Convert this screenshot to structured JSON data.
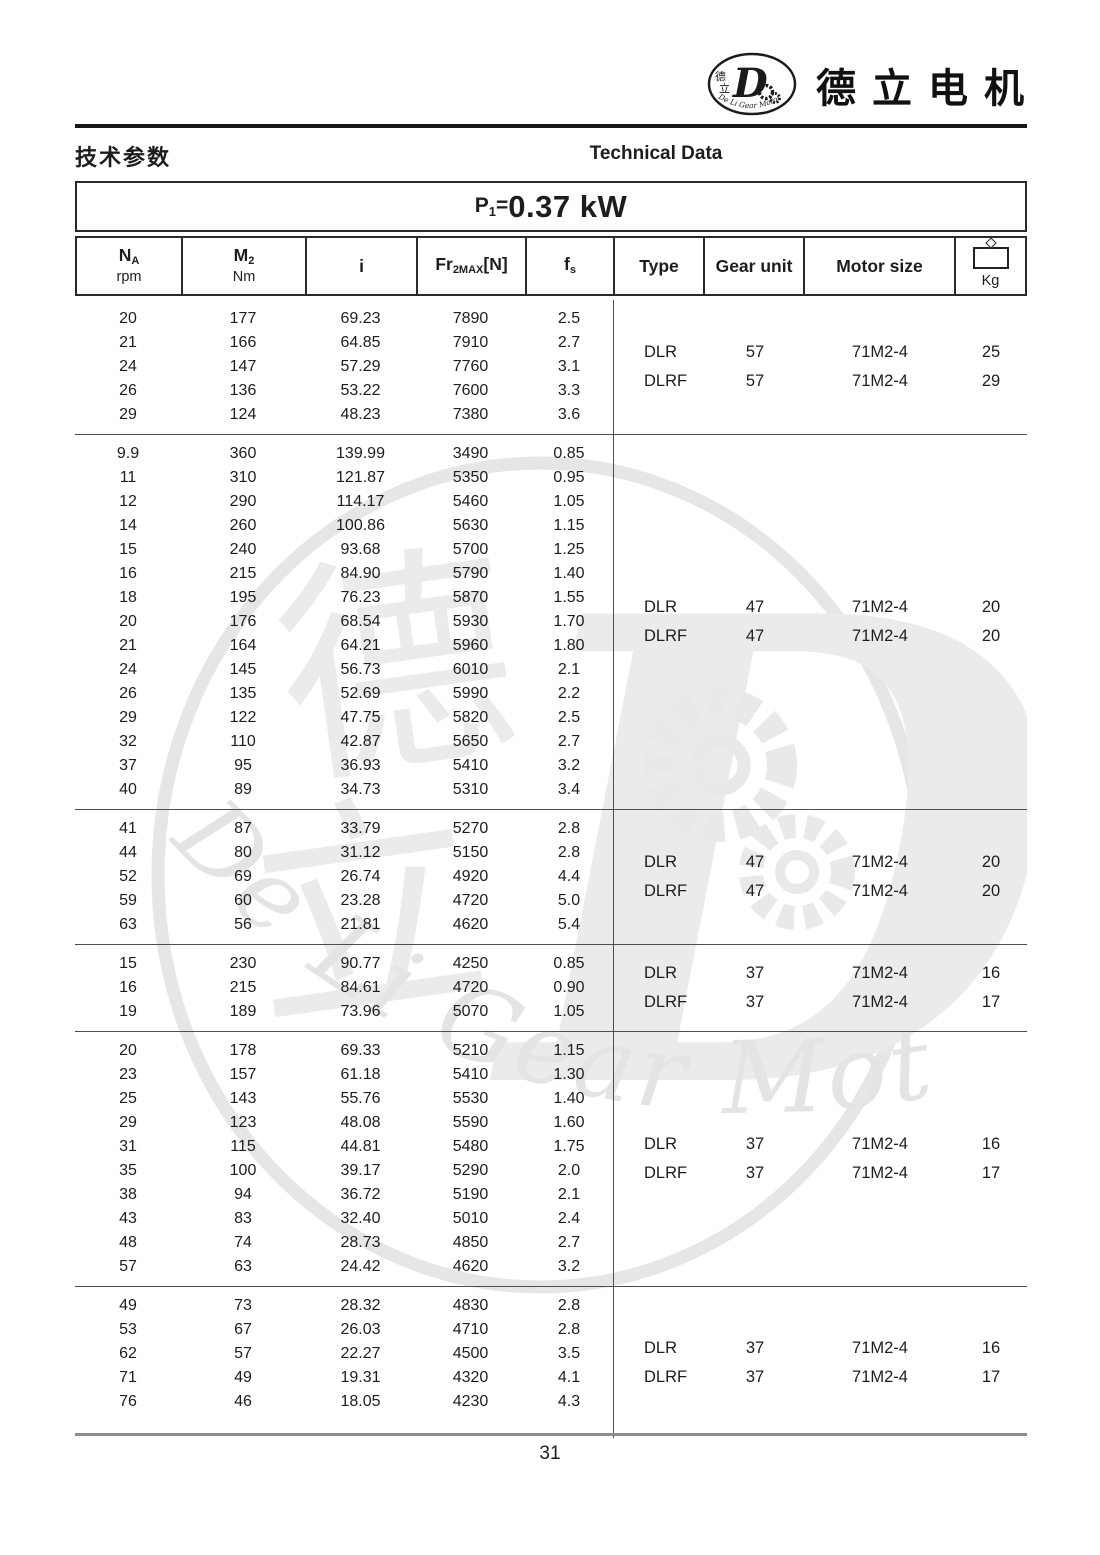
{
  "brand": {
    "logo": {
      "cn_top": "德",
      "cn_bottom": "立",
      "letter": "D",
      "arc_text": "De Li Gear Motor"
    },
    "name_cn": "德立电机"
  },
  "section": {
    "title_cn": "技术参数",
    "title_en": "Technical Data"
  },
  "power_title": {
    "prefix": "P",
    "sub": "1",
    "equals": "=",
    "value": "0.37 kW"
  },
  "table": {
    "col_keys": [
      "na-rpm",
      "m2-nm",
      "i",
      "fr2max-n",
      "fs"
    ],
    "headers": {
      "na": {
        "main": "N",
        "sub": "A",
        "unit": "rpm"
      },
      "m2": {
        "main": "M",
        "sub": "2",
        "unit": "Nm"
      },
      "i": {
        "main": "i"
      },
      "fr": {
        "pre": "Fr",
        "sub": "2MAX",
        "post": "[N]"
      },
      "fs": {
        "main": "f",
        "sub": "s"
      },
      "type": {
        "label": "Type"
      },
      "gear_unit": {
        "label": "Gear unit"
      },
      "motor_size": {
        "label": "Motor size"
      },
      "weight": {
        "label": "Kg",
        "icon": "weight-icon"
      }
    },
    "blocks": [
      {
        "rows": [
          [
            "20",
            "177",
            "69.23",
            "7890",
            "2.5"
          ],
          [
            "21",
            "166",
            "64.85",
            "7910",
            "2.7"
          ],
          [
            "24",
            "147",
            "57.29",
            "7760",
            "3.1"
          ],
          [
            "26",
            "136",
            "53.22",
            "7600",
            "3.3"
          ],
          [
            "29",
            "124",
            "48.23",
            "7380",
            "3.6"
          ]
        ],
        "type_rows": [
          {
            "type": "DLR",
            "gear": "57",
            "motor": "71M2-4",
            "kg": "25"
          },
          {
            "type": "DLRF",
            "gear": "57",
            "motor": "71M2-4",
            "kg": "29"
          }
        ]
      },
      {
        "rows": [
          [
            "9.9",
            "360",
            "139.99",
            "3490",
            "0.85"
          ],
          [
            "11",
            "310",
            "121.87",
            "5350",
            "0.95"
          ],
          [
            "12",
            "290",
            "114.17",
            "5460",
            "1.05"
          ],
          [
            "14",
            "260",
            "100.86",
            "5630",
            "1.15"
          ],
          [
            "15",
            "240",
            "93.68",
            "5700",
            "1.25"
          ],
          [
            "16",
            "215",
            "84.90",
            "5790",
            "1.40"
          ],
          [
            "18",
            "195",
            "76.23",
            "5870",
            "1.55"
          ],
          [
            "20",
            "176",
            "68.54",
            "5930",
            "1.70"
          ],
          [
            "21",
            "164",
            "64.21",
            "5960",
            "1.80"
          ],
          [
            "24",
            "145",
            "56.73",
            "6010",
            "2.1"
          ],
          [
            "26",
            "135",
            "52.69",
            "5990",
            "2.2"
          ],
          [
            "29",
            "122",
            "47.75",
            "5820",
            "2.5"
          ],
          [
            "32",
            "110",
            "42.87",
            "5650",
            "2.7"
          ],
          [
            "37",
            "95",
            "36.93",
            "5410",
            "3.2"
          ],
          [
            "40",
            "89",
            "34.73",
            "5310",
            "3.4"
          ]
        ],
        "type_rows": [
          {
            "type": "DLR",
            "gear": "47",
            "motor": "71M2-4",
            "kg": "20"
          },
          {
            "type": "DLRF",
            "gear": "47",
            "motor": "71M2-4",
            "kg": "20"
          }
        ]
      },
      {
        "rows": [
          [
            "41",
            "87",
            "33.79",
            "5270",
            "2.8"
          ],
          [
            "44",
            "80",
            "31.12",
            "5150",
            "2.8"
          ],
          [
            "52",
            "69",
            "26.74",
            "4920",
            "4.4"
          ],
          [
            "59",
            "60",
            "23.28",
            "4720",
            "5.0"
          ],
          [
            "63",
            "56",
            "21.81",
            "4620",
            "5.4"
          ]
        ],
        "type_rows": [
          {
            "type": "DLR",
            "gear": "47",
            "motor": "71M2-4",
            "kg": "20"
          },
          {
            "type": "DLRF",
            "gear": "47",
            "motor": "71M2-4",
            "kg": "20"
          }
        ]
      },
      {
        "rows": [
          [
            "15",
            "230",
            "90.77",
            "4250",
            "0.85"
          ],
          [
            "16",
            "215",
            "84.61",
            "4720",
            "0.90"
          ],
          [
            "19",
            "189",
            "73.96",
            "5070",
            "1.05"
          ]
        ],
        "type_rows": [
          {
            "type": "DLR",
            "gear": "37",
            "motor": "71M2-4",
            "kg": "16"
          },
          {
            "type": "DLRF",
            "gear": "37",
            "motor": "71M2-4",
            "kg": "17"
          }
        ]
      },
      {
        "rows": [
          [
            "20",
            "178",
            "69.33",
            "5210",
            "1.15"
          ],
          [
            "23",
            "157",
            "61.18",
            "5410",
            "1.30"
          ],
          [
            "25",
            "143",
            "55.76",
            "5530",
            "1.40"
          ],
          [
            "29",
            "123",
            "48.08",
            "5590",
            "1.60"
          ],
          [
            "31",
            "115",
            "44.81",
            "5480",
            "1.75"
          ],
          [
            "35",
            "100",
            "39.17",
            "5290",
            "2.0"
          ],
          [
            "38",
            "94",
            "36.72",
            "5190",
            "2.1"
          ],
          [
            "43",
            "83",
            "32.40",
            "5010",
            "2.4"
          ],
          [
            "48",
            "74",
            "28.73",
            "4850",
            "2.7"
          ],
          [
            "57",
            "63",
            "24.42",
            "4620",
            "3.2"
          ]
        ],
        "type_rows": [
          {
            "type": "DLR",
            "gear": "37",
            "motor": "71M2-4",
            "kg": "16"
          },
          {
            "type": "DLRF",
            "gear": "37",
            "motor": "71M2-4",
            "kg": "17"
          }
        ]
      },
      {
        "rows": [
          [
            "49",
            "73",
            "28.32",
            "4830",
            "2.8"
          ],
          [
            "53",
            "67",
            "26.03",
            "4710",
            "2.8"
          ],
          [
            "62",
            "57",
            "22.27",
            "4500",
            "3.5"
          ],
          [
            "71",
            "49",
            "19.31",
            "4320",
            "4.1"
          ],
          [
            "76",
            "46",
            "18.05",
            "4230",
            "4.3"
          ]
        ],
        "type_rows": [
          {
            "type": "DLR",
            "gear": "37",
            "motor": "71M2-4",
            "kg": "16"
          },
          {
            "type": "DLRF",
            "gear": "37",
            "motor": "71M2-4",
            "kg": "17"
          }
        ]
      }
    ]
  },
  "watermark": {
    "cn_top": "德",
    "cn_bottom": "立",
    "letter": "D",
    "arc_text": "De Li Gear Motor"
  },
  "footer": {
    "page_number": "31"
  },
  "colors": {
    "text": "#1d1d1d",
    "border_dark": "#2a2a2a",
    "border_light": "#4e4e4e",
    "footer_rule": "#8d8d8d",
    "watermark": "#e8e8e8"
  }
}
